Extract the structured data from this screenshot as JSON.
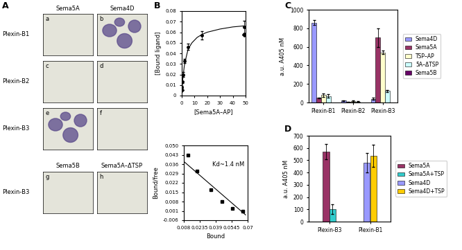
{
  "panel_labels": [
    "A",
    "B",
    "C",
    "D"
  ],
  "micrographs": {
    "column_headers": [
      "Sema5A",
      "Sema4D"
    ],
    "row_labels": [
      "Plexin-B1",
      "Plexin-B2",
      "Plexin-B3"
    ],
    "panel_letters": [
      "a",
      "b",
      "c",
      "d",
      "e",
      "f"
    ],
    "stained": [
      "b",
      "e"
    ],
    "bottom": {
      "column_headers": [
        "Sema5B",
        "Sema5A–ΔTSP"
      ],
      "row_label": "Plexin-B3",
      "panel_letters": [
        "g",
        "h"
      ]
    }
  },
  "chart_data": [
    {
      "type": "scatter",
      "xlabel": "[Sema5A–AP]",
      "ylabel": "[Bound ligand]",
      "x": [
        0,
        0.5,
        1,
        2,
        5,
        16,
        49
      ],
      "values": [
        0.008,
        0.013,
        0.02,
        0.033,
        0.046,
        0.057,
        0.065
      ],
      "errors": [
        0.001,
        0.001,
        0.002,
        0.002,
        0.003,
        0.004,
        0.006
      ],
      "marker": "circle",
      "fit": {
        "x": [
          0,
          0.5,
          1,
          2,
          3,
          5,
          8,
          12,
          16,
          20,
          30,
          40,
          49
        ],
        "values": [
          0,
          0.01,
          0.018,
          0.028,
          0.034,
          0.044,
          0.05,
          0.055,
          0.058,
          0.06,
          0.063,
          0.065,
          0.066
        ]
      },
      "outliers": {
        "x": [
          0,
          49
        ],
        "values": [
          0.005,
          0.058
        ],
        "marker": "diamond"
      },
      "xlim": [
        0,
        50
      ],
      "ylim": [
        0,
        0.08
      ],
      "xticks": [
        0,
        10,
        20,
        30,
        40,
        50
      ],
      "yticks": [
        0,
        0.01,
        0.02,
        0.03,
        0.04,
        0.05,
        0.06,
        0.07,
        0.08
      ]
    },
    {
      "type": "scatter",
      "xlabel": "Bound",
      "ylabel": "Bound/free",
      "annotation": "Kd~1.4 nM",
      "x": [
        0.012,
        0.021,
        0.034,
        0.045,
        0.055,
        0.065
      ],
      "values": [
        0.043,
        0.031,
        0.017,
        0.008,
        0.003,
        0.001
      ],
      "marker": "square",
      "fit": {
        "x": [
          0.008,
          0.068
        ],
        "values": [
          0.038,
          -0.002
        ]
      },
      "xlim": [
        0.008,
        0.07
      ],
      "ylim": [
        -0.006,
        0.05
      ],
      "xticks": [
        0.008,
        0.0235,
        0.039,
        0.0545,
        0.07
      ],
      "yticks": [
        -0.006,
        0.001,
        0.008,
        0.015,
        0.022,
        0.029,
        0.036,
        0.043,
        {
          "value": 0.05,
          "label": "0.050"
        }
      ]
    },
    {
      "type": "bar",
      "ylabel": "a.u. A405 nM",
      "categories": [
        "Plexin-B1",
        "Plexin-B2",
        "Plexin-B3"
      ],
      "series": [
        {
          "name": "Sema4D",
          "color": "#9999ff",
          "values": [
            860,
            20,
            40
          ],
          "errors": [
            25,
            5,
            10
          ]
        },
        {
          "name": "Sema5A",
          "color": "#993366",
          "values": [
            50,
            5,
            700
          ],
          "errors": [
            5,
            3,
            100
          ]
        },
        {
          "name": "TSP–AP",
          "color": "#ffffcc",
          "values": [
            80,
            15,
            540
          ],
          "errors": [
            20,
            5,
            20
          ]
        },
        {
          "name": "5A–ΔTSP",
          "color": "#ccffff",
          "values": [
            70,
            10,
            125
          ],
          "errors": [
            20,
            5,
            10
          ]
        },
        {
          "name": "Sema5B",
          "color": "#660066",
          "values": [
            0,
            0,
            0
          ],
          "errors": [
            0,
            0,
            0
          ]
        }
      ],
      "ylim": [
        0,
        1000
      ],
      "yticks": [
        0,
        200,
        400,
        600,
        800,
        1000
      ],
      "legend": "right"
    },
    {
      "type": "bar",
      "ylabel": "a.u. A405 nM",
      "categories": [
        "Plexin-B3",
        "Plexin-B1"
      ],
      "series": [
        {
          "name": "Sema5A",
          "color": "#993366",
          "values": [
            570,
            null
          ],
          "errors": [
            60,
            null
          ]
        },
        {
          "name": "Sema5A+TSP",
          "color": "#33cccc",
          "values": [
            100,
            null
          ],
          "errors": [
            40,
            null
          ]
        },
        {
          "name": "Sema4D",
          "color": "#9999ff",
          "values": [
            null,
            480
          ],
          "errors": [
            null,
            80
          ]
        },
        {
          "name": "Sema4D+TSP",
          "color": "#ffcc00",
          "values": [
            null,
            535
          ],
          "errors": [
            null,
            90
          ]
        }
      ],
      "ylim": [
        0,
        700
      ],
      "yticks": [
        0,
        100,
        200,
        300,
        400,
        500,
        600,
        700
      ],
      "legend": "right"
    }
  ]
}
